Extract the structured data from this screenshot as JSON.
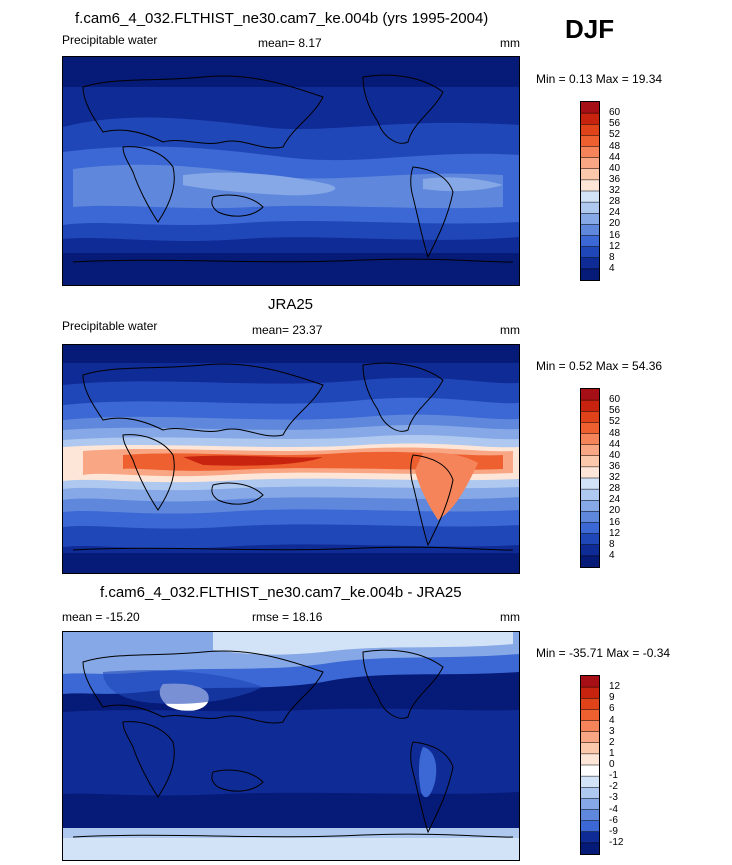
{
  "season": "DJF",
  "panels": [
    {
      "id": "model",
      "title": "f.cam6_4_032.FLTHIST_ne30.cam7_ke.004b (yrs 1995-2004)",
      "left_label": "Precipitable water",
      "center_label": "mean=  8.17",
      "units": "mm",
      "minmax": "Min =  0.13 Max =  19.34",
      "colorbar": {
        "labels": [
          "60",
          "56",
          "52",
          "48",
          "44",
          "40",
          "36",
          "32",
          "28",
          "24",
          "20",
          "16",
          "12",
          "8",
          "4"
        ],
        "colors": [
          "#a50f15",
          "#c8230f",
          "#e0421a",
          "#ef6030",
          "#f5845a",
          "#f8a683",
          "#fbc8ac",
          "#fde6d8",
          "#d3e3f7",
          "#aec8ef",
          "#86a8e6",
          "#5f88dc",
          "#3b68d4",
          "#2047b8",
          "#0f2b96",
          "#061a78"
        ]
      }
    },
    {
      "id": "obs",
      "title": "JRA25",
      "left_label": "Precipitable water",
      "center_label": "mean=  23.37",
      "units": "mm",
      "minmax": "Min =  0.52 Max =  54.36",
      "colorbar": {
        "labels": [
          "60",
          "56",
          "52",
          "48",
          "44",
          "40",
          "36",
          "32",
          "28",
          "24",
          "20",
          "16",
          "12",
          "8",
          "4"
        ],
        "colors": [
          "#a50f15",
          "#c8230f",
          "#e0421a",
          "#ef6030",
          "#f5845a",
          "#f8a683",
          "#fbc8ac",
          "#fde6d8",
          "#d3e3f7",
          "#aec8ef",
          "#86a8e6",
          "#5f88dc",
          "#3b68d4",
          "#2047b8",
          "#0f2b96",
          "#061a78"
        ]
      }
    },
    {
      "id": "diff",
      "title": "f.cam6_4_032.FLTHIST_ne30.cam7_ke.004b - JRA25",
      "left_label": "mean = -15.20",
      "center_label": "rmse =  18.16",
      "units": "mm",
      "minmax": "Min = -35.71 Max =  -0.34",
      "colorbar": {
        "labels": [
          "12",
          "9",
          "6",
          "4",
          "3",
          "2",
          "1",
          "0",
          "-1",
          "-2",
          "-3",
          "-4",
          "-6",
          "-9",
          "-12"
        ],
        "colors": [
          "#a50f15",
          "#c8230f",
          "#e0421a",
          "#ef6030",
          "#f5845a",
          "#f8a683",
          "#fbc8ac",
          "#fde6d8",
          "#ffffff",
          "#d3e3f7",
          "#aec8ef",
          "#86a8e6",
          "#5f88dc",
          "#3b68d4",
          "#0f2b96",
          "#061a78"
        ]
      }
    }
  ],
  "chart_data": [
    {
      "type": "heatmap",
      "title": "f.cam6_4_032.FLTHIST_ne30.cam7_ke.004b (yrs 1995-2004)",
      "variable": "Precipitable water",
      "units": "mm",
      "mean": 8.17,
      "min": 0.13,
      "max": 19.34,
      "contour_levels": [
        4,
        8,
        12,
        16,
        20,
        24,
        28,
        32,
        36,
        40,
        44,
        48,
        52,
        56,
        60
      ]
    },
    {
      "type": "heatmap",
      "title": "JRA25",
      "variable": "Precipitable water",
      "units": "mm",
      "mean": 23.37,
      "min": 0.52,
      "max": 54.36,
      "contour_levels": [
        4,
        8,
        12,
        16,
        20,
        24,
        28,
        32,
        36,
        40,
        44,
        48,
        52,
        56,
        60
      ]
    },
    {
      "type": "heatmap",
      "title": "f.cam6_4_032.FLTHIST_ne30.cam7_ke.004b - JRA25",
      "units": "mm",
      "mean": -15.2,
      "rmse": 18.16,
      "min": -35.71,
      "max": -0.34,
      "contour_levels": [
        -12,
        -9,
        -6,
        -4,
        -3,
        -2,
        -1,
        0,
        1,
        2,
        3,
        4,
        6,
        9,
        12
      ]
    }
  ]
}
